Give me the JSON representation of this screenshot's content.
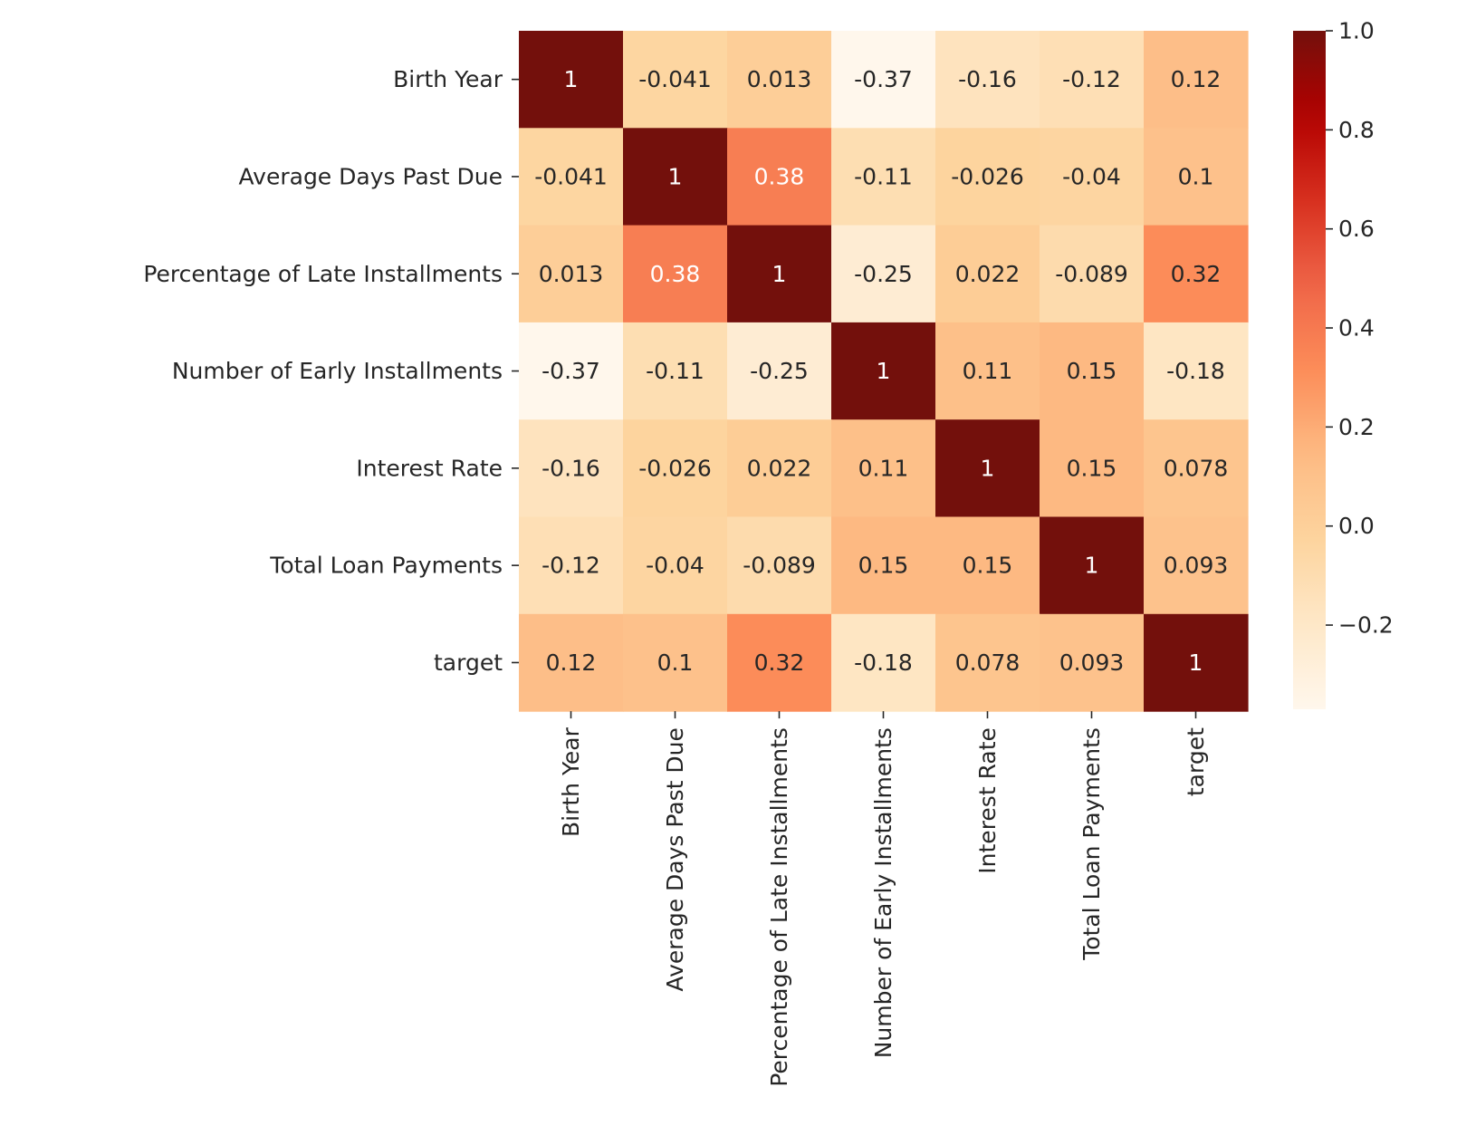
{
  "chart_data": {
    "type": "heatmap",
    "title": "",
    "xlabel": "",
    "ylabel": "",
    "labels": [
      "Birth Year",
      "Average Days Past Due",
      "Percentage of Late Installments",
      "Number of Early Installments",
      "Interest Rate",
      "Total Loan Payments",
      "target"
    ],
    "matrix": [
      [
        1,
        -0.041,
        0.013,
        -0.37,
        -0.16,
        -0.12,
        0.12
      ],
      [
        -0.041,
        1,
        0.38,
        -0.11,
        -0.026,
        -0.04,
        0.1
      ],
      [
        0.013,
        0.38,
        1,
        -0.25,
        0.022,
        -0.089,
        0.32
      ],
      [
        -0.37,
        -0.11,
        -0.25,
        1,
        0.11,
        0.15,
        -0.18
      ],
      [
        -0.16,
        -0.026,
        0.022,
        0.11,
        1,
        0.15,
        0.078
      ],
      [
        -0.12,
        -0.04,
        -0.089,
        0.15,
        0.15,
        1,
        0.093
      ],
      [
        0.12,
        0.1,
        0.32,
        -0.18,
        0.078,
        0.093,
        1
      ]
    ],
    "annotations": [
      [
        "1",
        "-0.041",
        "0.013",
        "-0.37",
        "-0.16",
        "-0.12",
        "0.12"
      ],
      [
        "-0.041",
        "1",
        "0.38",
        "-0.11",
        "-0.026",
        "-0.04",
        "0.1"
      ],
      [
        "0.013",
        "0.38",
        "1",
        "-0.25",
        "0.022",
        "-0.089",
        "0.32"
      ],
      [
        "-0.37",
        "-0.11",
        "-0.25",
        "1",
        "0.11",
        "0.15",
        "-0.18"
      ],
      [
        "-0.16",
        "-0.026",
        "0.022",
        "0.11",
        "1",
        "0.15",
        "0.078"
      ],
      [
        "-0.12",
        "-0.04",
        "-0.089",
        "0.15",
        "0.15",
        "1",
        "0.093"
      ],
      [
        "0.12",
        "0.1",
        "0.32",
        "-0.18",
        "0.078",
        "0.093",
        "1"
      ]
    ],
    "colormap": "OrRd-like",
    "colorbar": {
      "range": [
        -0.37,
        1.0
      ],
      "ticks": [
        1.0,
        0.8,
        0.6,
        0.4,
        0.2,
        0.0,
        -0.2
      ],
      "tick_labels": [
        "1.0",
        "0.8",
        "0.6",
        "0.4",
        "0.2",
        "0.0",
        "−0.2"
      ],
      "position": "right"
    }
  }
}
